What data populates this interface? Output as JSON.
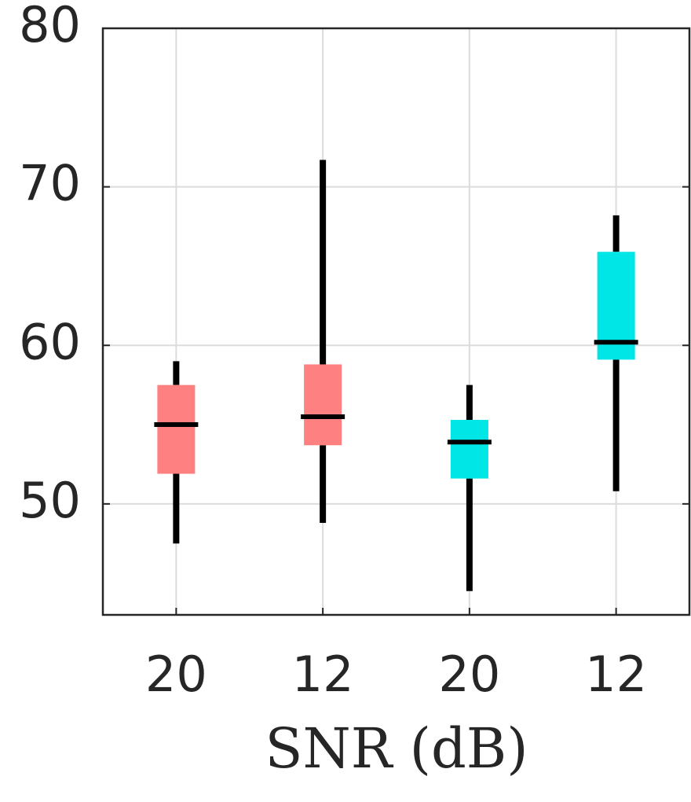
{
  "chart_data": {
    "type": "box",
    "xlabel": "SNR (dB)",
    "categories": [
      "20",
      "12",
      "20",
      "12"
    ],
    "boxes": [
      {
        "whislo": 47.5,
        "q1": 51.9,
        "median": 55.0,
        "q3": 57.5,
        "whishi": 59.0,
        "color": "#ff8080"
      },
      {
        "whislo": 48.8,
        "q1": 53.7,
        "median": 55.5,
        "q3": 58.8,
        "whishi": 71.7,
        "color": "#ff8080"
      },
      {
        "whislo": 44.5,
        "q1": 51.6,
        "median": 53.9,
        "q3": 55.3,
        "whishi": 57.5,
        "color": "#00e5e5"
      },
      {
        "whislo": 50.8,
        "q1": 59.1,
        "median": 60.2,
        "q3": 65.9,
        "whishi": 68.2,
        "color": "#00e5e5"
      }
    ],
    "ylim": [
      43,
      80
    ],
    "yticks": [
      50,
      60,
      70,
      80
    ],
    "grid": true
  }
}
